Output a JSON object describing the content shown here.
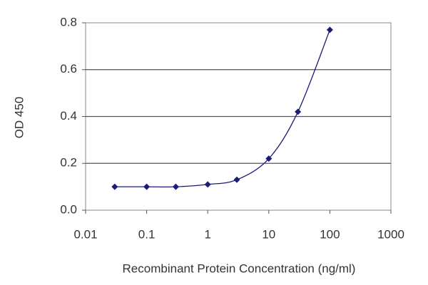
{
  "chart_data": {
    "type": "line",
    "x_label": "Recombinant Protein Concentration (ng/ml)",
    "y_label": "OD 450",
    "x": [
      0.03,
      0.1,
      0.3,
      1,
      3,
      10,
      30,
      100
    ],
    "series": [
      {
        "color": "#1c1c78",
        "values": [
          0.1,
          0.1,
          0.1,
          0.11,
          0.13,
          0.22,
          0.42,
          0.77
        ]
      }
    ],
    "xscale": "log",
    "xlim": [
      0.01,
      1000
    ],
    "xticks": [
      0.01,
      0.1,
      1,
      10,
      100,
      1000
    ],
    "ylim": [
      0,
      0.8
    ],
    "yticks": [
      {
        "value": 0,
        "label": "0.0"
      },
      0.2,
      0.4,
      0.6,
      0.8
    ],
    "grid": true
  }
}
